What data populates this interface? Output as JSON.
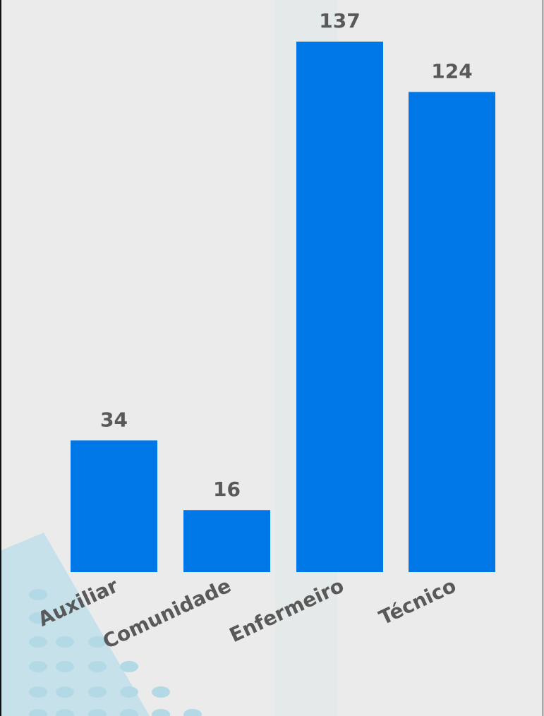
{
  "colors": {
    "bar": "#0077e6",
    "label": "#595959",
    "background": "#ebebeb",
    "decor_dot": "#b3d9e6",
    "decor_triangle": "#a7d8ea"
  },
  "chart_data": {
    "type": "bar",
    "categories": [
      "Auxiliar",
      "Comunidade",
      "Enfermeiro",
      "Técnico"
    ],
    "values": [
      34,
      16,
      137,
      124
    ],
    "title": "",
    "xlabel": "",
    "ylabel": "",
    "ylim": [
      0,
      137
    ],
    "grid": false,
    "legend": "none"
  },
  "decorations": {
    "corner_pattern_icon": "dot-grid-icon"
  }
}
